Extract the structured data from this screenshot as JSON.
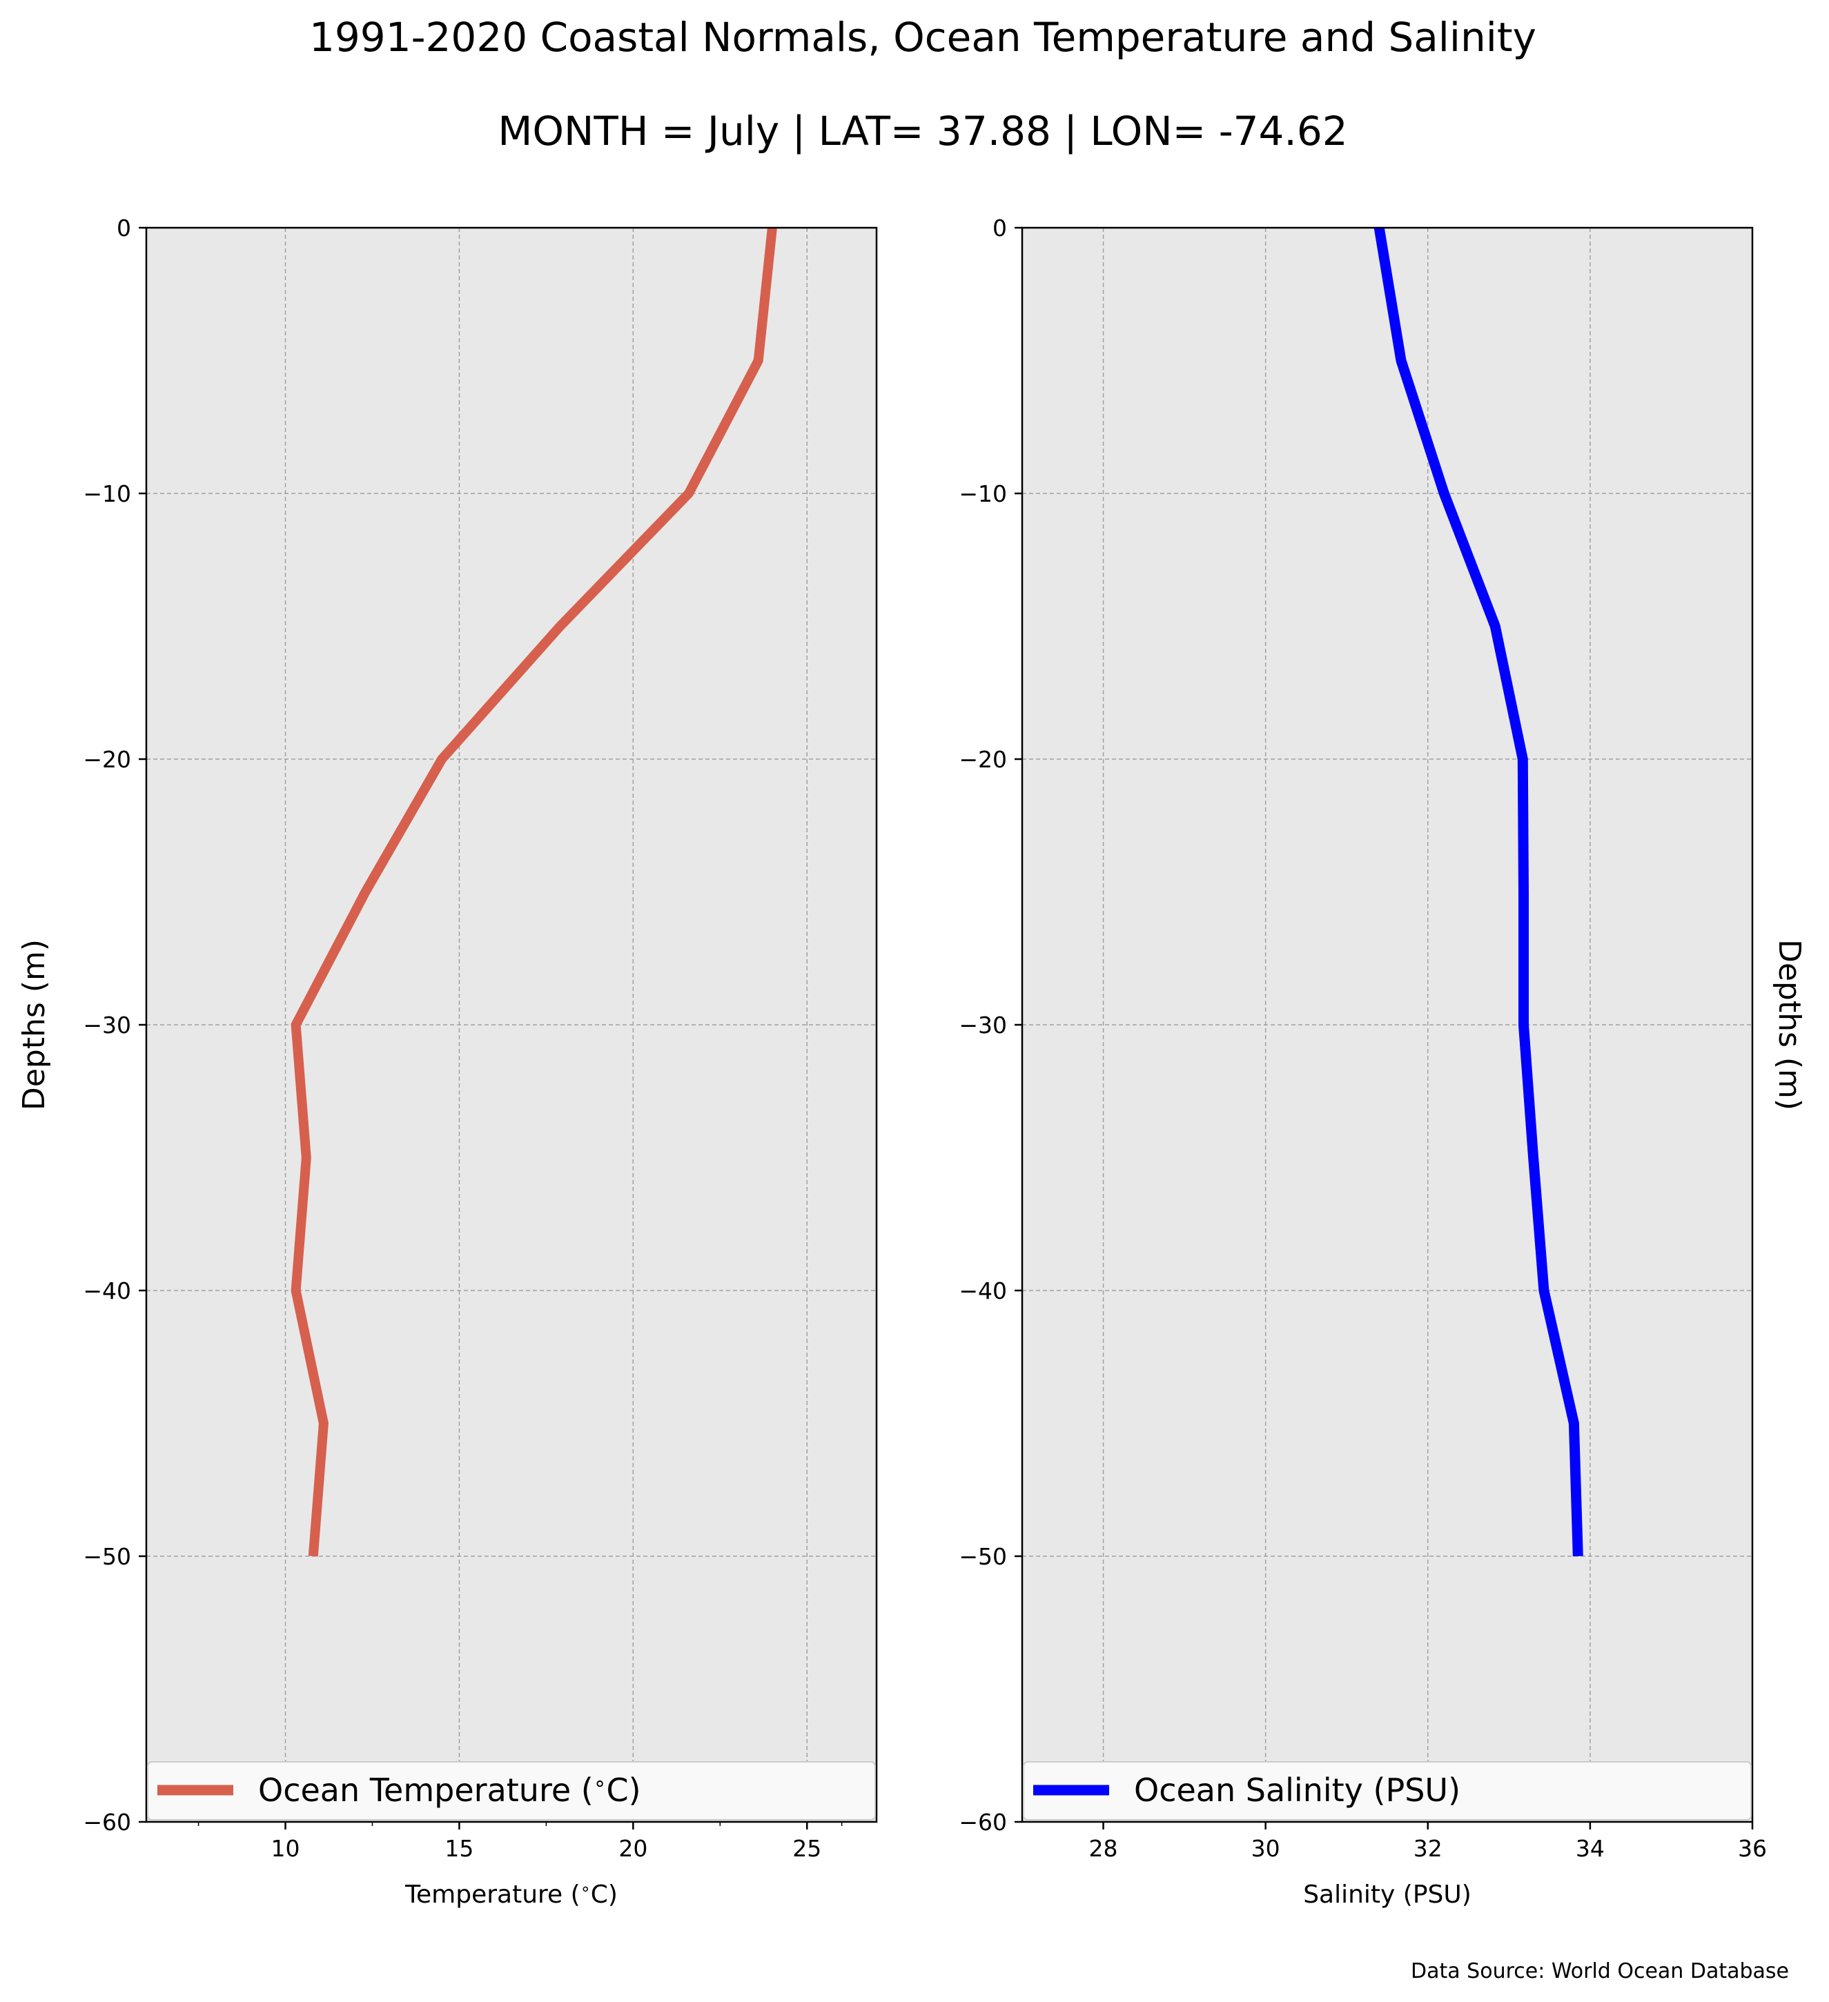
{
  "figure": {
    "title": "1991-2020 Coastal Normals, Ocean Temperature and Salinity",
    "subtitle": "MONTH = July | LAT= 37.88 | LON= -74.62",
    "source": "Data Source: World Ocean Database",
    "background_color": "#e8e8e8",
    "grid_color": "#a0a0a0"
  },
  "chart_data": [
    {
      "type": "line",
      "title": "",
      "xlabel": "Temperature ($^\\circ$C)",
      "ylabel": "Depths (m)",
      "xlim": [
        6,
        27
      ],
      "ylim": [
        -60,
        0
      ],
      "xticks": [
        "10",
        "15",
        "20",
        "25"
      ],
      "yticks": [
        "0",
        "−10",
        "−20",
        "−30",
        "−40",
        "−50",
        "−60"
      ],
      "grid": true,
      "legend": "lower-center",
      "series": [
        {
          "name": "Ocean Temperature ($^\\circ$C)",
          "color": "#d6604d",
          "x": [
            24.0,
            23.6,
            21.6,
            17.9,
            14.5,
            12.3,
            10.3,
            10.6,
            10.3,
            11.1,
            10.8
          ],
          "y": [
            0,
            -5,
            -10,
            -15,
            -20,
            -25,
            -30,
            -35,
            -40,
            -45,
            -50
          ]
        }
      ]
    },
    {
      "type": "line",
      "title": "",
      "xlabel": "Salinity (PSU)",
      "ylabel": "Depths (m)",
      "xlim": [
        27,
        36
      ],
      "ylim": [
        -60,
        0
      ],
      "xticks": [
        "28",
        "30",
        "32",
        "34",
        "36"
      ],
      "yticks": [
        "0",
        "−10",
        "−20",
        "−30",
        "−40",
        "−50",
        "−60"
      ],
      "grid": true,
      "legend": "lower-center",
      "series": [
        {
          "name": "Ocean Salinity (PSU)",
          "color": "#0000ff",
          "x": [
            31.4,
            31.67,
            32.2,
            32.83,
            33.17,
            33.18,
            33.18,
            33.3,
            33.43,
            33.8,
            33.85
          ],
          "y": [
            0,
            -5,
            -10,
            -15,
            -20,
            -25,
            -30,
            -35,
            -40,
            -45,
            -50
          ]
        }
      ]
    }
  ]
}
